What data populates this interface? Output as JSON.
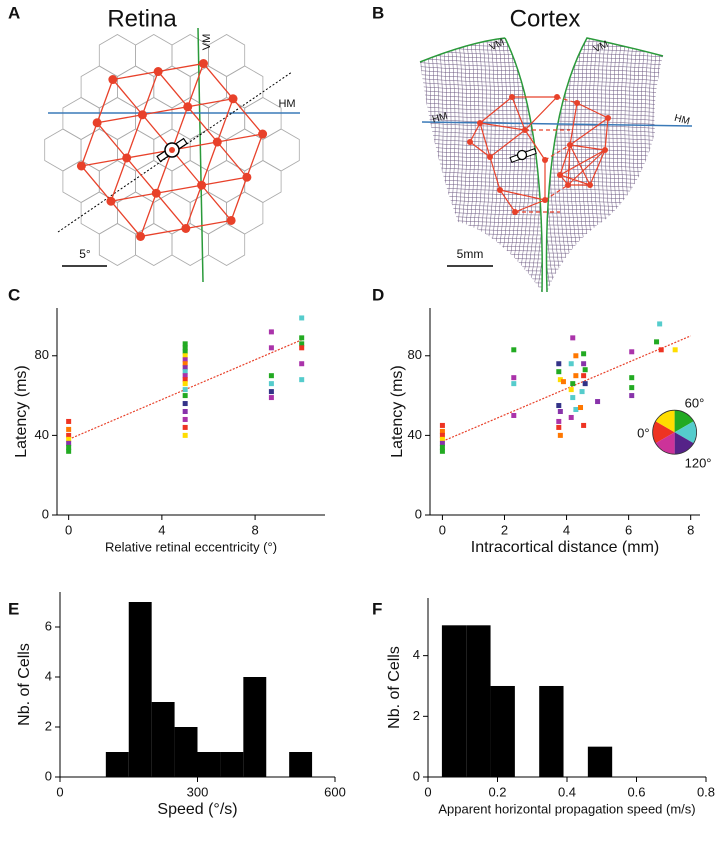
{
  "panel_labels": [
    "A",
    "B",
    "C",
    "D",
    "E",
    "F"
  ],
  "diagrams": [
    {
      "title": "Retina",
      "vertical_label": "VM",
      "horizontal_label": "HM",
      "scale_label": "5°"
    },
    {
      "title": "Cortex",
      "vertical_labels": [
        "VM",
        "VM"
      ],
      "horizontal_labels": [
        "HM",
        "HM"
      ],
      "scale_label": "5mm"
    }
  ],
  "chart_data": [
    {
      "type": "scatter",
      "xlabel": "Relative retinal eccentricity (°)",
      "ylabel": "Latency (ms)",
      "xlim": [
        -0.5,
        11
      ],
      "xticks": [
        0,
        4,
        8
      ],
      "ylim": [
        0,
        104
      ],
      "yticks": [
        0,
        40,
        80
      ],
      "fit": {
        "color": "#e8412a",
        "x": [
          0,
          10
        ],
        "y": [
          38,
          88
        ]
      },
      "points": {
        "x": [
          0,
          0,
          0,
          0,
          0,
          0,
          0,
          5,
          5,
          5,
          5,
          5,
          5,
          5,
          5,
          5,
          5,
          5,
          5,
          5,
          5,
          5,
          5,
          5,
          5,
          8.7,
          8.7,
          8.7,
          8.7,
          8.7,
          8.7,
          10,
          10,
          10,
          10,
          10,
          10
        ],
        "y": [
          47,
          43,
          40,
          38,
          36,
          34,
          32,
          86,
          84,
          82,
          80,
          78,
          76,
          74,
          72,
          70,
          68,
          66,
          63,
          60,
          56,
          52,
          48,
          44,
          40,
          92,
          84,
          70,
          66,
          62,
          59,
          99,
          89,
          86,
          84,
          76,
          68
        ],
        "colors": [
          "#ee3322",
          "#ff7700",
          "#ee3322",
          "#ffdd00",
          "#8833aa",
          "#22aa22",
          "#22aa22",
          "#22aa22",
          "#22aa22",
          "#22aa22",
          "#ffdd00",
          "#aa33aa",
          "#ff7700",
          "#8833aa",
          "#55cccc",
          "#aa33aa",
          "#ee3322",
          "#ffdd00",
          "#55cccc",
          "#22aa22",
          "#333388",
          "#8833aa",
          "#aa33aa",
          "#ee3322",
          "#ffdd00",
          "#aa33aa",
          "#aa33aa",
          "#22aa22",
          "#55cccc",
          "#333388",
          "#aa33aa",
          "#55cccc",
          "#22aa22",
          "#22aa22",
          "#ee3322",
          "#aa33aa",
          "#55cccc"
        ]
      }
    },
    {
      "type": "scatter",
      "xlabel": "Intracortical distance (mm)",
      "ylabel": "Latency (ms)",
      "xlim": [
        -0.4,
        8.3
      ],
      "xticks": [
        0,
        2,
        4,
        6,
        8
      ],
      "ylim": [
        0,
        104
      ],
      "yticks": [
        0,
        40,
        80
      ],
      "fit": {
        "color": "#e8412a",
        "x": [
          0,
          8
        ],
        "y": [
          37,
          90
        ]
      },
      "points": {
        "x": [
          0,
          0,
          0,
          0,
          0,
          0,
          0,
          2.3,
          2.3,
          2.3,
          2.3,
          3.75,
          3.75,
          3.8,
          3.9,
          3.75,
          3.8,
          3.75,
          3.75,
          3.8,
          4.2,
          4.3,
          4.15,
          4.3,
          4.2,
          4.15,
          4.2,
          4.3,
          4.15,
          4.55,
          4.55,
          4.6,
          4.55,
          4.6,
          4.5,
          4.45,
          4.55,
          5.0,
          6.1,
          6.1,
          6.1,
          6.1,
          7.0,
          6.9,
          7.05,
          7.5
        ],
        "y": [
          45,
          42,
          40,
          38,
          36,
          34,
          32,
          83,
          69,
          66,
          50,
          76,
          72,
          68,
          67,
          55,
          52,
          47,
          44,
          40,
          89,
          80,
          76,
          70,
          66,
          63,
          59,
          53,
          49,
          81,
          76,
          73,
          70,
          66,
          62,
          54,
          45,
          57,
          82,
          69,
          64,
          60,
          96,
          87,
          83,
          83
        ],
        "colors": [
          "#ee3322",
          "#ff7700",
          "#ee3322",
          "#ffdd00",
          "#8833aa",
          "#22aa22",
          "#22aa22",
          "#22aa22",
          "#aa33aa",
          "#55cccc",
          "#aa33aa",
          "#333388",
          "#22aa22",
          "#ffdd00",
          "#ff7700",
          "#333388",
          "#8833aa",
          "#aa33aa",
          "#ee3322",
          "#ff7700",
          "#aa33aa",
          "#ff7700",
          "#55cccc",
          "#ff7700",
          "#22aa22",
          "#ffdd00",
          "#55cccc",
          "#55cccc",
          "#aa33aa",
          "#22aa22",
          "#8833aa",
          "#22aa22",
          "#ee3322",
          "#333388",
          "#55cccc",
          "#ff7700",
          "#ee3322",
          "#8833aa",
          "#aa33aa",
          "#22aa22",
          "#22aa22",
          "#8833aa",
          "#55cccc",
          "#22aa22",
          "#ee3322",
          "#ffdd00"
        ]
      },
      "wheel_colors": [
        "#ee3322",
        "#ffdd00",
        "#22aa22",
        "#55cccc",
        "#552288",
        "#cc3399"
      ],
      "wheel_labels": [
        "60°",
        "0°",
        "120°"
      ]
    },
    {
      "type": "histogram",
      "xlabel": "Speed (°/s)",
      "ylabel": "Nb. of Cells",
      "color": "#000000",
      "xlim": [
        0,
        600
      ],
      "xticks": [
        0,
        300,
        600
      ],
      "ylim": [
        0,
        7.4
      ],
      "yticks": [
        0,
        2,
        4,
        6
      ],
      "bins": [
        100,
        150,
        200,
        250,
        300,
        350,
        400,
        450,
        500,
        550
      ],
      "counts": [
        1,
        7,
        3,
        2,
        1,
        1,
        4,
        0,
        1
      ]
    },
    {
      "type": "histogram",
      "xlabel": "Apparent horizontal propagation speed (m/s)",
      "ylabel": "Nb. of Cells",
      "color": "#000000",
      "xlim": [
        0,
        0.8
      ],
      "xticks": [
        0,
        0.2,
        0.4,
        0.6,
        0.8
      ],
      "ylim": [
        0,
        5.9
      ],
      "yticks": [
        0,
        2,
        4
      ],
      "bins": [
        0.04,
        0.11,
        0.18,
        0.25,
        0.32,
        0.39,
        0.46,
        0.53
      ],
      "counts": [
        5,
        5,
        3,
        0,
        3,
        0,
        1
      ]
    }
  ]
}
